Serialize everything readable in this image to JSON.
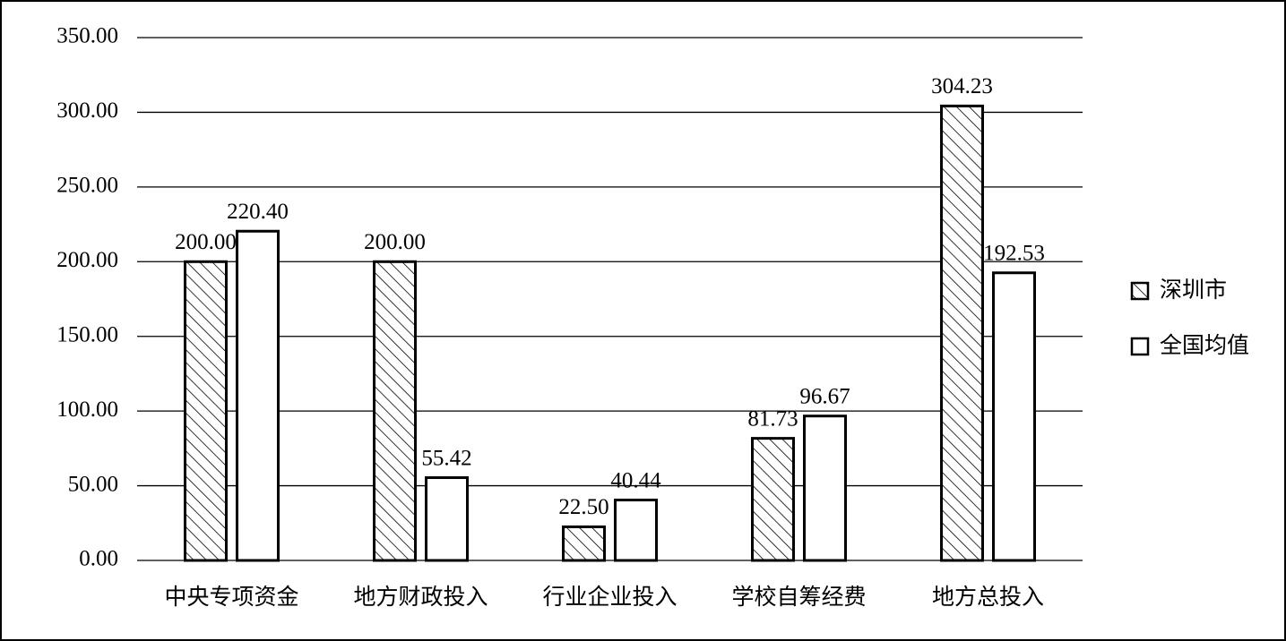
{
  "chart_data": {
    "type": "bar",
    "categories": [
      "中央专项资金",
      "地方财政投入",
      "行业企业投入",
      "学校自筹经费",
      "地方总投入"
    ],
    "series": [
      {
        "name": "深圳市",
        "color": "#ffffff",
        "hatch": true,
        "values": [
          200,
          200,
          22.5,
          81.73,
          304.23
        ],
        "value_labels": [
          "200.00",
          "200.00",
          "22.50",
          "81.73",
          "304.23"
        ]
      },
      {
        "name": "全国均值",
        "color": "#ffffff",
        "values": [
          220.4,
          55.42,
          40.44,
          96.67,
          192.53
        ],
        "value_labels": [
          "220.40",
          "55.42",
          "40.44",
          "96.67",
          "192.53"
        ]
      }
    ],
    "ylim": [
      0,
      350
    ],
    "yticks": [
      {
        "value": 0,
        "label": "0.00"
      },
      {
        "value": 50,
        "label": "50.00"
      },
      {
        "value": 100,
        "label": "100.00"
      },
      {
        "value": 150,
        "label": "150.00"
      },
      {
        "value": 200,
        "label": "200.00"
      },
      {
        "value": 250,
        "label": "250.00"
      },
      {
        "value": 300,
        "label": "300.00"
      },
      {
        "value": 350,
        "label": "350.00"
      }
    ],
    "grid": true,
    "legend": "right"
  }
}
